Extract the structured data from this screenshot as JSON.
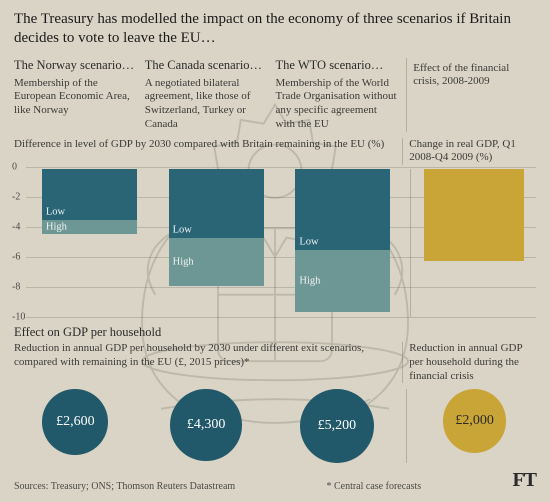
{
  "background_color": "#d9d4c5",
  "title": "The Treasury has modelled the impact on the economy of three scenarios if Britain decides to vote to leave the EU…",
  "columns": [
    {
      "head": "The Norway scenario…",
      "desc": "Membership of the European Economic Area, like Norway"
    },
    {
      "head": "The Canada scenario…",
      "desc": "A negotiated bilateral agreement, like those of Switzerland, Turkey or Canada"
    },
    {
      "head": "The WTO scenario…",
      "desc": "Membership of the World Trade Organisation without any specific agreement with the EU"
    },
    {
      "head": "",
      "desc": "Effect of the financial crisis, 2008-2009"
    }
  ],
  "chart_left_sub": "Difference in level of GDP by 2030 compared with Britain remaining in the EU (%)",
  "chart_right_sub": "Change in real GDP, Q1 2008-Q4 2009 (%)",
  "chart": {
    "ylim": [
      0,
      -10
    ],
    "yticks": [
      0,
      -2,
      -4,
      -6,
      -8,
      -10
    ],
    "grid_color": "rgba(90,90,80,0.25)",
    "bars": [
      {
        "low": -3.4,
        "high": -4.3,
        "low_color": "#2a6576",
        "high_color": "#6d9794"
      },
      {
        "low": -4.6,
        "high": -7.8,
        "low_color": "#2a6576",
        "high_color": "#6d9794"
      },
      {
        "low": -5.4,
        "high": -9.5,
        "low_color": "#2a6576",
        "high_color": "#6d9794"
      },
      {
        "single": -6.1,
        "color": "#c9a437"
      }
    ],
    "low_label": "Low",
    "high_label": "High"
  },
  "effect_head": "Effect on GDP per household",
  "effect_left_sub": "Reduction in annual GDP per household by 2030 under different exit scenarios, compared with remaining in the EU (£, 2015 prices)*",
  "effect_right_sub": "Reduction in annual GDP per household during the financial crisis",
  "bubbles": [
    {
      "label": "£2,600",
      "value": 2600,
      "color": "#21586a",
      "text_color": "#ffffff"
    },
    {
      "label": "£4,300",
      "value": 4300,
      "color": "#21586a",
      "text_color": "#ffffff"
    },
    {
      "label": "£5,200",
      "value": 5200,
      "color": "#21586a",
      "text_color": "#ffffff"
    },
    {
      "label": "£2,000",
      "value": 2000,
      "color": "#c9a437",
      "text_color": "#2b2b2b"
    }
  ],
  "bubble_scale": {
    "max_value": 5200,
    "max_diameter": 74,
    "min_diameter": 46
  },
  "sources": "Sources: Treasury; ONS; Thomson Reuters Datastream",
  "footnote": "* Central case forecasts",
  "logo": "FT"
}
